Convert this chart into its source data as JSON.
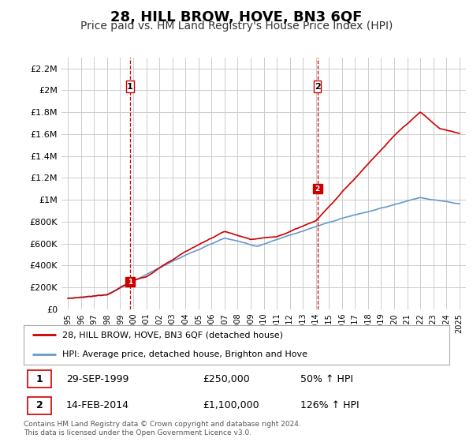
{
  "title": "28, HILL BROW, HOVE, BN3 6QF",
  "subtitle": "Price paid vs. HM Land Registry's House Price Index (HPI)",
  "title_fontsize": 13,
  "subtitle_fontsize": 10,
  "background_color": "#ffffff",
  "plot_bg_color": "#ffffff",
  "grid_color": "#cccccc",
  "legend_label_red": "28, HILL BROW, HOVE, BN3 6QF (detached house)",
  "legend_label_blue": "HPI: Average price, detached house, Brighton and Hove",
  "footer": "Contains HM Land Registry data © Crown copyright and database right 2024.\nThis data is licensed under the Open Government Licence v3.0.",
  "transaction1_label": "1",
  "transaction1_date": "29-SEP-1999",
  "transaction1_price": "£250,000",
  "transaction1_hpi": "50% ↑ HPI",
  "transaction2_label": "2",
  "transaction2_date": "14-FEB-2014",
  "transaction2_price": "£1,100,000",
  "transaction2_hpi": "126% ↑ HPI",
  "ylim": [
    0,
    2300000
  ],
  "yticks": [
    0,
    200000,
    400000,
    600000,
    800000,
    1000000,
    1200000,
    1400000,
    1600000,
    1800000,
    2000000,
    2200000
  ],
  "ytick_labels": [
    "£0",
    "£200K",
    "£400K",
    "£600K",
    "£800K",
    "£1M",
    "£1.2M",
    "£1.4M",
    "£1.6M",
    "£1.8M",
    "£2M",
    "£2.2M"
  ],
  "red_line_color": "#cc0000",
  "blue_line_color": "#6699cc",
  "marker1_date": 1999.75,
  "marker1_value": 250000,
  "marker2_date": 2014.12,
  "marker2_value": 1100000,
  "vline1_date": 1999.75,
  "vline2_date": 2014.12,
  "xlim_min": 1994.5,
  "xlim_max": 2025.5
}
